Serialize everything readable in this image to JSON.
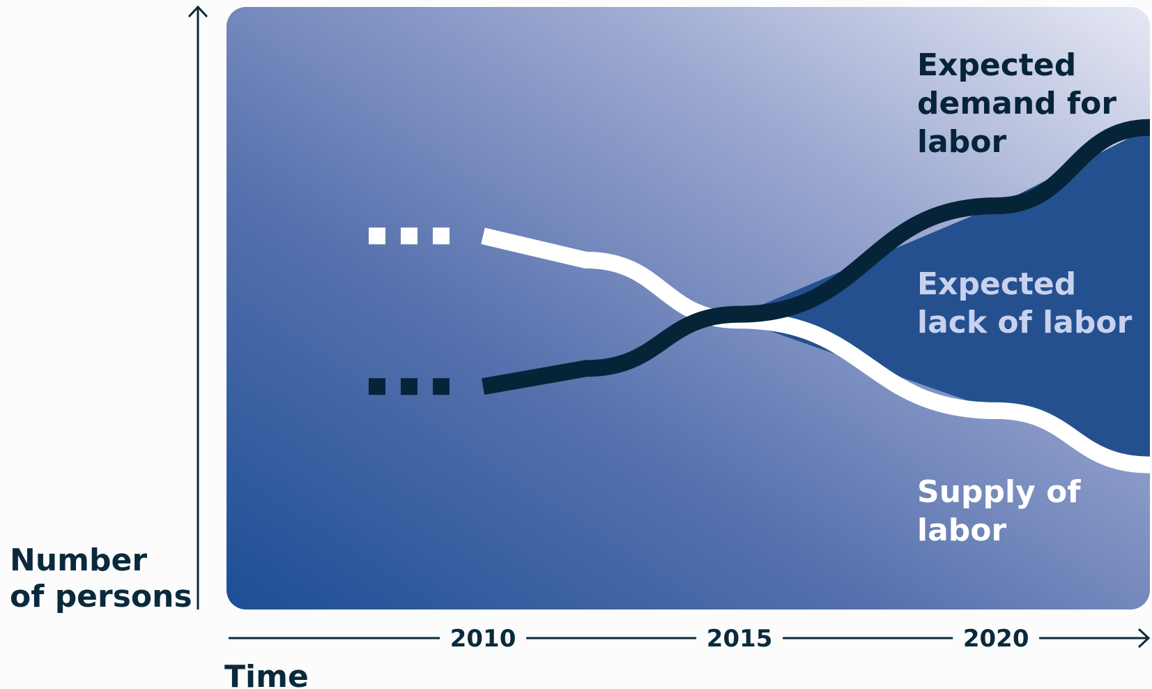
{
  "chart_data": {
    "type": "line",
    "xlabel": "Time",
    "ylabel_lines": [
      "Number",
      "of persons"
    ],
    "x_ticks": [
      2010,
      2015,
      2020
    ],
    "xlim": [
      2005,
      2023
    ],
    "ylim": [
      0,
      100
    ],
    "grid": false,
    "series": [
      {
        "name": "Supply of labor",
        "name_lines": [
          "Supply of",
          "labor"
        ],
        "color": "#ffffff",
        "x": [
          2009,
          2010,
          2012,
          2015,
          2020,
          2023
        ],
        "y": [
          62,
          62,
          58,
          48,
          33,
          24
        ],
        "history_style": "dashed"
      },
      {
        "name": "Expected demand for labor",
        "name_lines": [
          "Expected",
          "demand for",
          "labor"
        ],
        "color": "#062438",
        "x": [
          2009,
          2010,
          2012,
          2015,
          2020,
          2023
        ],
        "y": [
          37,
          37,
          40,
          49,
          67,
          80
        ],
        "history_style": "dashed"
      }
    ],
    "annotations": [
      {
        "text_lines": [
          "Expected",
          "lack of labor"
        ],
        "color": "#c8d2ee",
        "region_fill": "#24508f"
      }
    ]
  }
}
